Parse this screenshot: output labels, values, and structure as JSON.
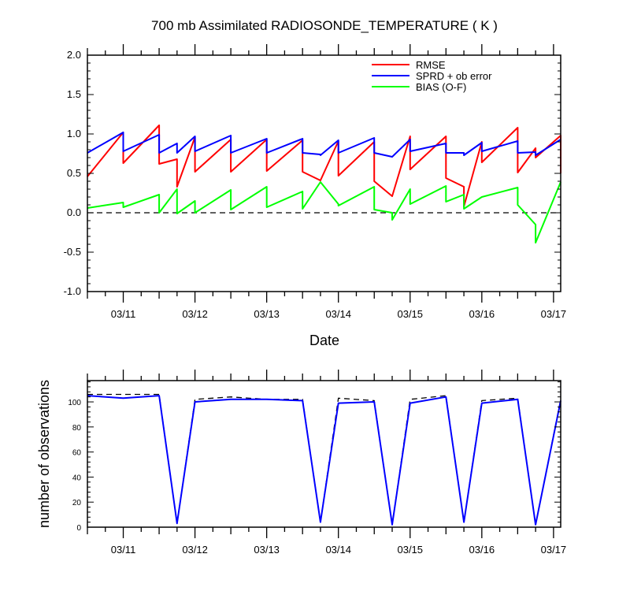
{
  "chart_data": [
    {
      "type": "line",
      "title": "700 mb Assimilated RADIOSONDE_TEMPERATURE ( K )",
      "xlabel": "Date",
      "ylabel": "",
      "xlim": [
        0,
        6.6
      ],
      "ylim": [
        -1.0,
        2.0
      ],
      "yticks": [
        -1.0,
        -0.5,
        0.0,
        0.5,
        1.0,
        1.5,
        2.0
      ],
      "ytick_labels": [
        "-1.0",
        "-0.5",
        "0.0",
        "0.5",
        "1.0",
        "1.5",
        "2.0"
      ],
      "xticks": [
        0.5,
        1.5,
        2.5,
        3.5,
        4.5,
        5.5,
        6.5
      ],
      "xtick_labels": [
        "03/11",
        "03/12",
        "03/13",
        "03/14",
        "03/15",
        "03/16",
        "03/17"
      ],
      "zero_line": true,
      "legend_position": "top-right",
      "colors": {
        "RMSE": "#ff0000",
        "SPRD + ob error": "#0000ff",
        "BIAS (O-F)": "#00ff00"
      },
      "series": [
        {
          "name": "RMSE",
          "x": [
            0,
            0.5,
            0.5,
            1.0,
            1.0,
            1.25,
            1.25,
            1.5,
            1.5,
            2.0,
            2.0,
            2.5,
            2.5,
            3.0,
            3.0,
            3.25,
            3.25,
            3.5,
            3.5,
            4.0,
            4.0,
            4.25,
            4.25,
            4.5,
            4.5,
            5.0,
            5.0,
            5.25,
            5.25,
            5.5,
            5.5,
            6.0,
            6.0,
            6.25,
            6.25,
            6.6,
            6.6
          ],
          "y": [
            0.46,
            1.02,
            0.63,
            1.11,
            0.62,
            0.68,
            0.33,
            0.96,
            0.52,
            0.93,
            0.52,
            0.93,
            0.53,
            0.92,
            0.52,
            0.41,
            0.41,
            0.91,
            0.47,
            0.9,
            0.4,
            0.21,
            0.21,
            0.97,
            0.55,
            0.97,
            0.44,
            0.33,
            0.08,
            0.9,
            0.64,
            1.08,
            0.51,
            0.82,
            0.7,
            0.98,
            0.5
          ]
        },
        {
          "name": "SPRD + ob error",
          "x": [
            0,
            0.5,
            0.5,
            1.0,
            1.0,
            1.25,
            1.25,
            1.5,
            1.5,
            2.0,
            2.0,
            2.5,
            2.5,
            3.0,
            3.0,
            3.25,
            3.25,
            3.5,
            3.5,
            4.0,
            4.0,
            4.25,
            4.25,
            4.5,
            4.5,
            5.0,
            5.0,
            5.25,
            5.25,
            5.5,
            5.5,
            6.0,
            6.0,
            6.25,
            6.25,
            6.6
          ],
          "y": [
            0.76,
            1.02,
            0.78,
            0.99,
            0.76,
            0.88,
            0.76,
            0.97,
            0.78,
            0.98,
            0.76,
            0.94,
            0.76,
            0.94,
            0.76,
            0.74,
            0.73,
            0.92,
            0.76,
            0.95,
            0.76,
            0.71,
            0.71,
            0.93,
            0.78,
            0.88,
            0.76,
            0.76,
            0.73,
            0.89,
            0.78,
            0.91,
            0.76,
            0.77,
            0.73,
            0.93
          ]
        },
        {
          "name": "BIAS (O-F)",
          "x": [
            0,
            0.5,
            0.5,
            1.0,
            1.0,
            1.25,
            1.25,
            1.5,
            1.5,
            2.0,
            2.0,
            2.5,
            2.5,
            3.0,
            3.0,
            3.25,
            3.25,
            3.5,
            3.5,
            4.0,
            4.0,
            4.25,
            4.25,
            4.5,
            4.5,
            5.0,
            5.0,
            5.25,
            5.25,
            5.5,
            5.5,
            6.0,
            6.0,
            6.25,
            6.25,
            6.6
          ],
          "y": [
            0.06,
            0.13,
            0.07,
            0.23,
            0.0,
            0.3,
            -0.01,
            0.15,
            0.0,
            0.29,
            0.04,
            0.33,
            0.07,
            0.27,
            0.05,
            0.39,
            0.39,
            0.11,
            0.09,
            0.33,
            0.04,
            0.0,
            -0.09,
            0.3,
            0.11,
            0.34,
            0.14,
            0.23,
            0.05,
            0.2,
            0.2,
            0.32,
            0.1,
            -0.15,
            -0.38,
            0.39
          ]
        }
      ]
    },
    {
      "type": "line",
      "title": "",
      "xlabel": "",
      "ylabel": "number of observations",
      "xlim": [
        0,
        6.6
      ],
      "ylim": [
        0,
        117
      ],
      "yticks": [
        0,
        20,
        40,
        60,
        80,
        100
      ],
      "ytick_labels": [
        "0",
        "20",
        "40",
        "60",
        "80",
        "100"
      ],
      "xticks": [
        0.5,
        1.5,
        2.5,
        3.5,
        4.5,
        5.5,
        6.5
      ],
      "xtick_labels": [
        "03/11",
        "03/12",
        "03/13",
        "03/14",
        "03/15",
        "03/16",
        "03/17"
      ],
      "series": [
        {
          "line_style": "dashed",
          "color": "#000000",
          "x": [
            0,
            0.5,
            1.0,
            1.25,
            1.5,
            2.0,
            2.5,
            3.0,
            3.25,
            3.5,
            4.0,
            4.25,
            4.5,
            5.0,
            5.25,
            5.5,
            6.0,
            6.25,
            6.6
          ],
          "y": [
            106,
            106,
            106,
            3,
            102,
            104,
            102,
            102,
            4,
            103,
            101,
            2,
            102,
            105,
            4,
            101,
            103,
            2,
            102
          ]
        },
        {
          "line_style": "solid",
          "color": "#0000ff",
          "x": [
            0,
            0.5,
            1.0,
            1.25,
            1.5,
            2.0,
            2.5,
            3.0,
            3.25,
            3.5,
            4.0,
            4.25,
            4.5,
            5.0,
            5.25,
            5.5,
            6.0,
            6.25,
            6.6
          ],
          "y": [
            105,
            103,
            105,
            3,
            100,
            102,
            102,
            101,
            4,
            99,
            100,
            2,
            99,
            104,
            4,
            99,
            102,
            2,
            101
          ]
        }
      ]
    }
  ]
}
